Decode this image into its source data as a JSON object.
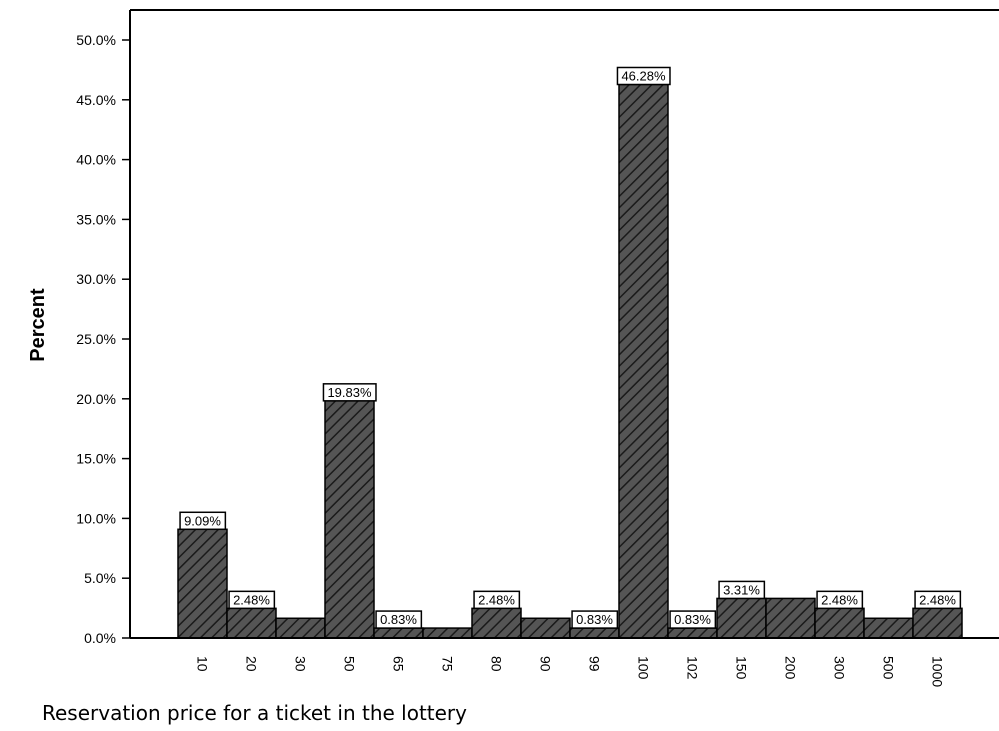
{
  "chart_data": {
    "type": "bar",
    "title": "",
    "xlabel": "Reservation price for a ticket in the lottery",
    "ylabel": "Percent",
    "categories": [
      "10",
      "20",
      "30",
      "50",
      "65",
      "75",
      "80",
      "90",
      "99",
      "100",
      "102",
      "150",
      "200",
      "300",
      "500",
      "1000"
    ],
    "values": [
      9.09,
      2.48,
      1.65,
      19.83,
      0.83,
      0.83,
      2.48,
      1.65,
      0.83,
      46.28,
      0.83,
      3.31,
      3.31,
      2.48,
      1.65,
      2.48
    ],
    "data_labels": [
      "9.09%",
      "2.48%",
      null,
      "19.83%",
      "0.83%",
      null,
      "2.48%",
      null,
      "0.83%",
      "46.28%",
      "0.83%",
      "3.31%",
      null,
      "2.48%",
      null,
      "2.48%"
    ],
    "yticks": [
      "0.0%",
      "5.0%",
      "10.0%",
      "15.0%",
      "20.0%",
      "25.0%",
      "30.0%",
      "35.0%",
      "40.0%",
      "45.0%",
      "50.0%"
    ],
    "ylim": [
      0,
      50
    ],
    "bar_fill": "#555555",
    "bar_pattern": "diagonal-hatch",
    "grid": false,
    "legend": "none"
  }
}
